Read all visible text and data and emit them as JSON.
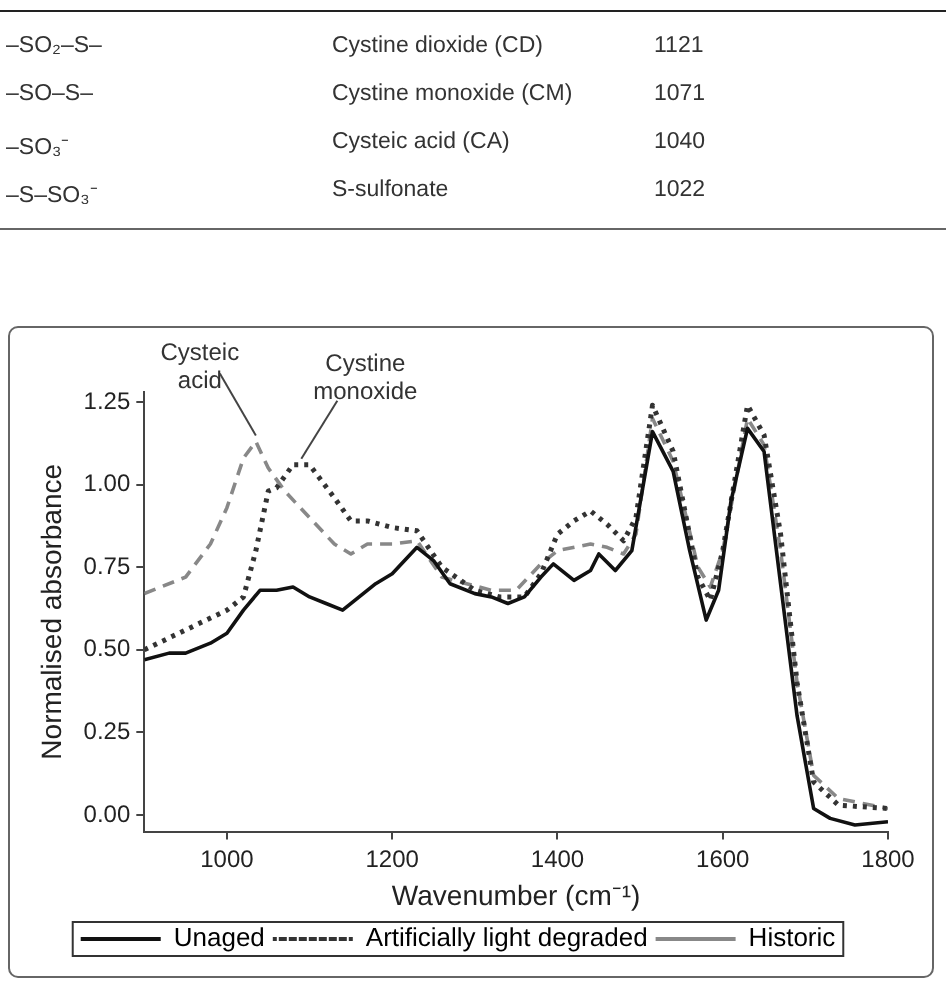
{
  "chart_data": {
    "type": "line",
    "xlabel": "Wavenumber (cm⁻¹)",
    "ylabel": "Normalised absorbance",
    "xlim": [
      900,
      1800
    ],
    "xticks": [
      1000,
      1200,
      1400,
      1600,
      1800
    ],
    "ylim": [
      -0.05,
      1.28
    ],
    "yticks": [
      {
        "value": 0,
        "label": "0.00"
      },
      {
        "value": 0.25,
        "label": "0.25"
      },
      {
        "value": 0.5,
        "label": "0.50"
      },
      {
        "value": 0.75,
        "label": "0.75"
      },
      {
        "value": 1,
        "label": "1.00"
      },
      {
        "value": 1.25,
        "label": "1.25"
      }
    ],
    "grid": false,
    "legend": "bottom",
    "marker": "none",
    "series": [
      {
        "name": "Unaged",
        "color": "#111111",
        "line_style": "solid",
        "x": [
          900,
          930,
          950,
          980,
          1000,
          1020,
          1040,
          1060,
          1080,
          1100,
          1120,
          1140,
          1160,
          1180,
          1200,
          1230,
          1250,
          1270,
          1300,
          1320,
          1340,
          1360,
          1380,
          1395,
          1420,
          1440,
          1450,
          1470,
          1490,
          1515,
          1540,
          1560,
          1580,
          1595,
          1610,
          1630,
          1650,
          1670,
          1690,
          1710,
          1730,
          1760,
          1800
        ],
        "values": [
          0.47,
          0.49,
          0.49,
          0.52,
          0.55,
          0.62,
          0.68,
          0.68,
          0.69,
          0.66,
          0.64,
          0.62,
          0.66,
          0.7,
          0.73,
          0.81,
          0.77,
          0.7,
          0.67,
          0.66,
          0.64,
          0.66,
          0.72,
          0.76,
          0.71,
          0.74,
          0.79,
          0.74,
          0.8,
          1.16,
          1.04,
          0.8,
          0.59,
          0.68,
          0.95,
          1.17,
          1.1,
          0.7,
          0.3,
          0.02,
          -0.01,
          -0.03,
          -0.02
        ]
      },
      {
        "name": "Artificially light degraded",
        "color": "#333333",
        "line_style": "dotted",
        "x": [
          900,
          950,
          1000,
          1020,
          1035,
          1050,
          1060,
          1080,
          1100,
          1130,
          1150,
          1170,
          1200,
          1230,
          1260,
          1300,
          1330,
          1360,
          1380,
          1400,
          1420,
          1440,
          1460,
          1480,
          1495,
          1515,
          1540,
          1570,
          1585,
          1600,
          1630,
          1650,
          1670,
          1690,
          1710,
          1740,
          1800
        ],
        "values": [
          0.5,
          0.56,
          0.62,
          0.66,
          0.8,
          0.98,
          0.99,
          1.06,
          1.06,
          0.96,
          0.89,
          0.89,
          0.87,
          0.86,
          0.75,
          0.68,
          0.66,
          0.66,
          0.73,
          0.85,
          0.89,
          0.92,
          0.88,
          0.83,
          0.9,
          1.24,
          1.1,
          0.72,
          0.65,
          0.8,
          1.24,
          1.15,
          0.85,
          0.4,
          0.1,
          0.03,
          0.02
        ]
      },
      {
        "name": "Historic",
        "color": "#888888",
        "line_style": "dashed",
        "x": [
          900,
          950,
          980,
          1000,
          1020,
          1035,
          1050,
          1070,
          1100,
          1130,
          1150,
          1170,
          1200,
          1230,
          1260,
          1290,
          1320,
          1350,
          1380,
          1400,
          1440,
          1460,
          1480,
          1495,
          1515,
          1540,
          1570,
          1585,
          1600,
          1630,
          1650,
          1670,
          1690,
          1710,
          1740,
          1800
        ],
        "values": [
          0.67,
          0.72,
          0.82,
          0.93,
          1.08,
          1.13,
          1.05,
          0.98,
          0.9,
          0.82,
          0.79,
          0.82,
          0.82,
          0.83,
          0.72,
          0.7,
          0.68,
          0.68,
          0.76,
          0.8,
          0.82,
          0.81,
          0.79,
          0.85,
          1.2,
          1.07,
          0.75,
          0.69,
          0.8,
          1.2,
          1.12,
          0.8,
          0.4,
          0.12,
          0.05,
          0.02
        ]
      }
    ],
    "annotations": [
      "–SO₂–S–",
      "Cystine dioxide (CD)",
      "1121",
      "–SO–S–",
      "Cystine monoxide (CM)",
      "1071",
      "–SO₃⁻",
      "Cysteic acid (CA)",
      "1040",
      "–S–SO₃⁻",
      "S-sulfonate",
      "1022",
      {
        "text": "Cysteic acid",
        "x": 1035,
        "y": 1.13
      },
      {
        "text": "Cystine monoxide",
        "x": 1090,
        "y": 1.06
      }
    ]
  }
}
